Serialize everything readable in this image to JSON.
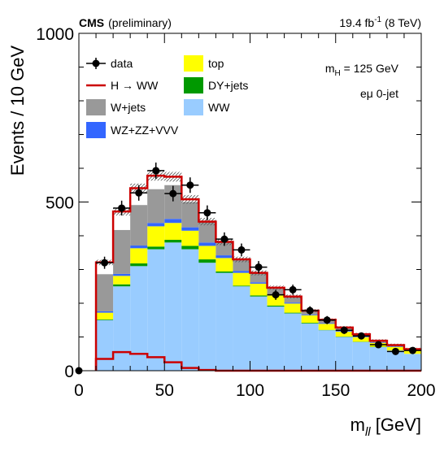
{
  "header": {
    "experiment": "CMS",
    "status": "(preliminary)",
    "lumi_value": "19.4 fb",
    "lumi_exp": "-1",
    "energy": "(8 TeV)"
  },
  "annotations": {
    "mass_prefix": "m",
    "mass_sub": "H",
    "mass_value": " = 125 GeV",
    "channel": "eμ 0-jet"
  },
  "colors": {
    "data": "#000000",
    "signal": "#cc0000",
    "wjets": "#999999",
    "wz_zz_vvv": "#3366ff",
    "top": "#ffff00",
    "dyjets": "#009900",
    "ww": "#99ccff",
    "uncertainty": "#555555"
  },
  "chart_data": {
    "type": "bar",
    "title": "",
    "xlabel_main": "m",
    "xlabel_sub": "ll",
    "xlabel_unit": " [GeV]",
    "ylabel": "Events / 10 GeV",
    "xlim": [
      0,
      200
    ],
    "ylim": [
      0,
      1000
    ],
    "xticks": [
      0,
      50,
      100,
      150,
      200
    ],
    "yticks": [
      0,
      500,
      1000
    ],
    "bin_edges": [
      10,
      20,
      30,
      40,
      50,
      60,
      70,
      80,
      90,
      100,
      110,
      120,
      130,
      140,
      150,
      160,
      170,
      180,
      190,
      200
    ],
    "legend": [
      {
        "key": "data",
        "label": "data",
        "style": "marker"
      },
      {
        "key": "top",
        "label": "top",
        "style": "box"
      },
      {
        "key": "signal",
        "label": "H → WW",
        "style": "line"
      },
      {
        "key": "dyjets",
        "label": "DY+jets",
        "style": "box"
      },
      {
        "key": "wjets",
        "label": "W+jets",
        "style": "box"
      },
      {
        "key": "ww",
        "label": "WW",
        "style": "box"
      },
      {
        "key": "wz_zz_vvv",
        "label": "WZ+ZZ+VVV",
        "style": "box"
      }
    ],
    "series": [
      {
        "key": "ww",
        "name": "WW",
        "values": [
          150,
          250,
          310,
          360,
          380,
          360,
          320,
          290,
          250,
          220,
          190,
          170,
          140,
          120,
          100,
          85,
          70,
          60,
          50
        ]
      },
      {
        "key": "dyjets",
        "name": "DY+jets",
        "values": [
          2,
          6,
          8,
          8,
          8,
          10,
          10,
          4,
          2,
          3,
          3,
          2,
          2,
          1,
          1,
          1,
          1,
          0,
          0
        ]
      },
      {
        "key": "top",
        "name": "top",
        "values": [
          20,
          25,
          45,
          60,
          50,
          45,
          40,
          40,
          38,
          35,
          30,
          27,
          22,
          18,
          15,
          13,
          11,
          10,
          9
        ]
      },
      {
        "key": "wz_zz_vvv",
        "name": "WZ+ZZ+VVV",
        "values": [
          4,
          6,
          8,
          10,
          12,
          10,
          10,
          8,
          6,
          4,
          3,
          3,
          2,
          2,
          2,
          1,
          1,
          1,
          1
        ]
      },
      {
        "key": "wjets",
        "name": "W+jets",
        "values": [
          110,
          130,
          120,
          100,
          100,
          75,
          60,
          40,
          34,
          28,
          20,
          18,
          12,
          10,
          10,
          8,
          6,
          5,
          4
        ]
      },
      {
        "key": "signal",
        "name": "H → WW",
        "values": [
          35,
          55,
          50,
          40,
          25,
          8,
          2,
          0,
          0,
          0,
          0,
          0,
          0,
          0,
          0,
          0,
          0,
          0,
          0
        ]
      }
    ],
    "signal_alone": [
      35,
      55,
      50,
      40,
      25,
      8,
      2,
      0,
      0,
      0,
      0,
      0,
      0,
      0,
      0,
      0,
      0,
      0,
      0
    ],
    "data_points": [
      {
        "x": 0,
        "y": 0,
        "err": 0
      },
      {
        "x": 15,
        "y": 320,
        "err": 18
      },
      {
        "x": 25,
        "y": 482,
        "err": 22
      },
      {
        "x": 35,
        "y": 527,
        "err": 23
      },
      {
        "x": 45,
        "y": 593,
        "err": 24
      },
      {
        "x": 55,
        "y": 525,
        "err": 23
      },
      {
        "x": 65,
        "y": 550,
        "err": 23
      },
      {
        "x": 75,
        "y": 468,
        "err": 22
      },
      {
        "x": 85,
        "y": 390,
        "err": 20
      },
      {
        "x": 95,
        "y": 358,
        "err": 19
      },
      {
        "x": 105,
        "y": 307,
        "err": 18
      },
      {
        "x": 115,
        "y": 225,
        "err": 15
      },
      {
        "x": 125,
        "y": 240,
        "err": 15
      },
      {
        "x": 135,
        "y": 178,
        "err": 13
      },
      {
        "x": 145,
        "y": 150,
        "err": 12
      },
      {
        "x": 155,
        "y": 120,
        "err": 11
      },
      {
        "x": 165,
        "y": 103,
        "err": 10
      },
      {
        "x": 175,
        "y": 77,
        "err": 9
      },
      {
        "x": 185,
        "y": 57,
        "err": 8
      },
      {
        "x": 195,
        "y": 60,
        "err": 8
      }
    ]
  }
}
